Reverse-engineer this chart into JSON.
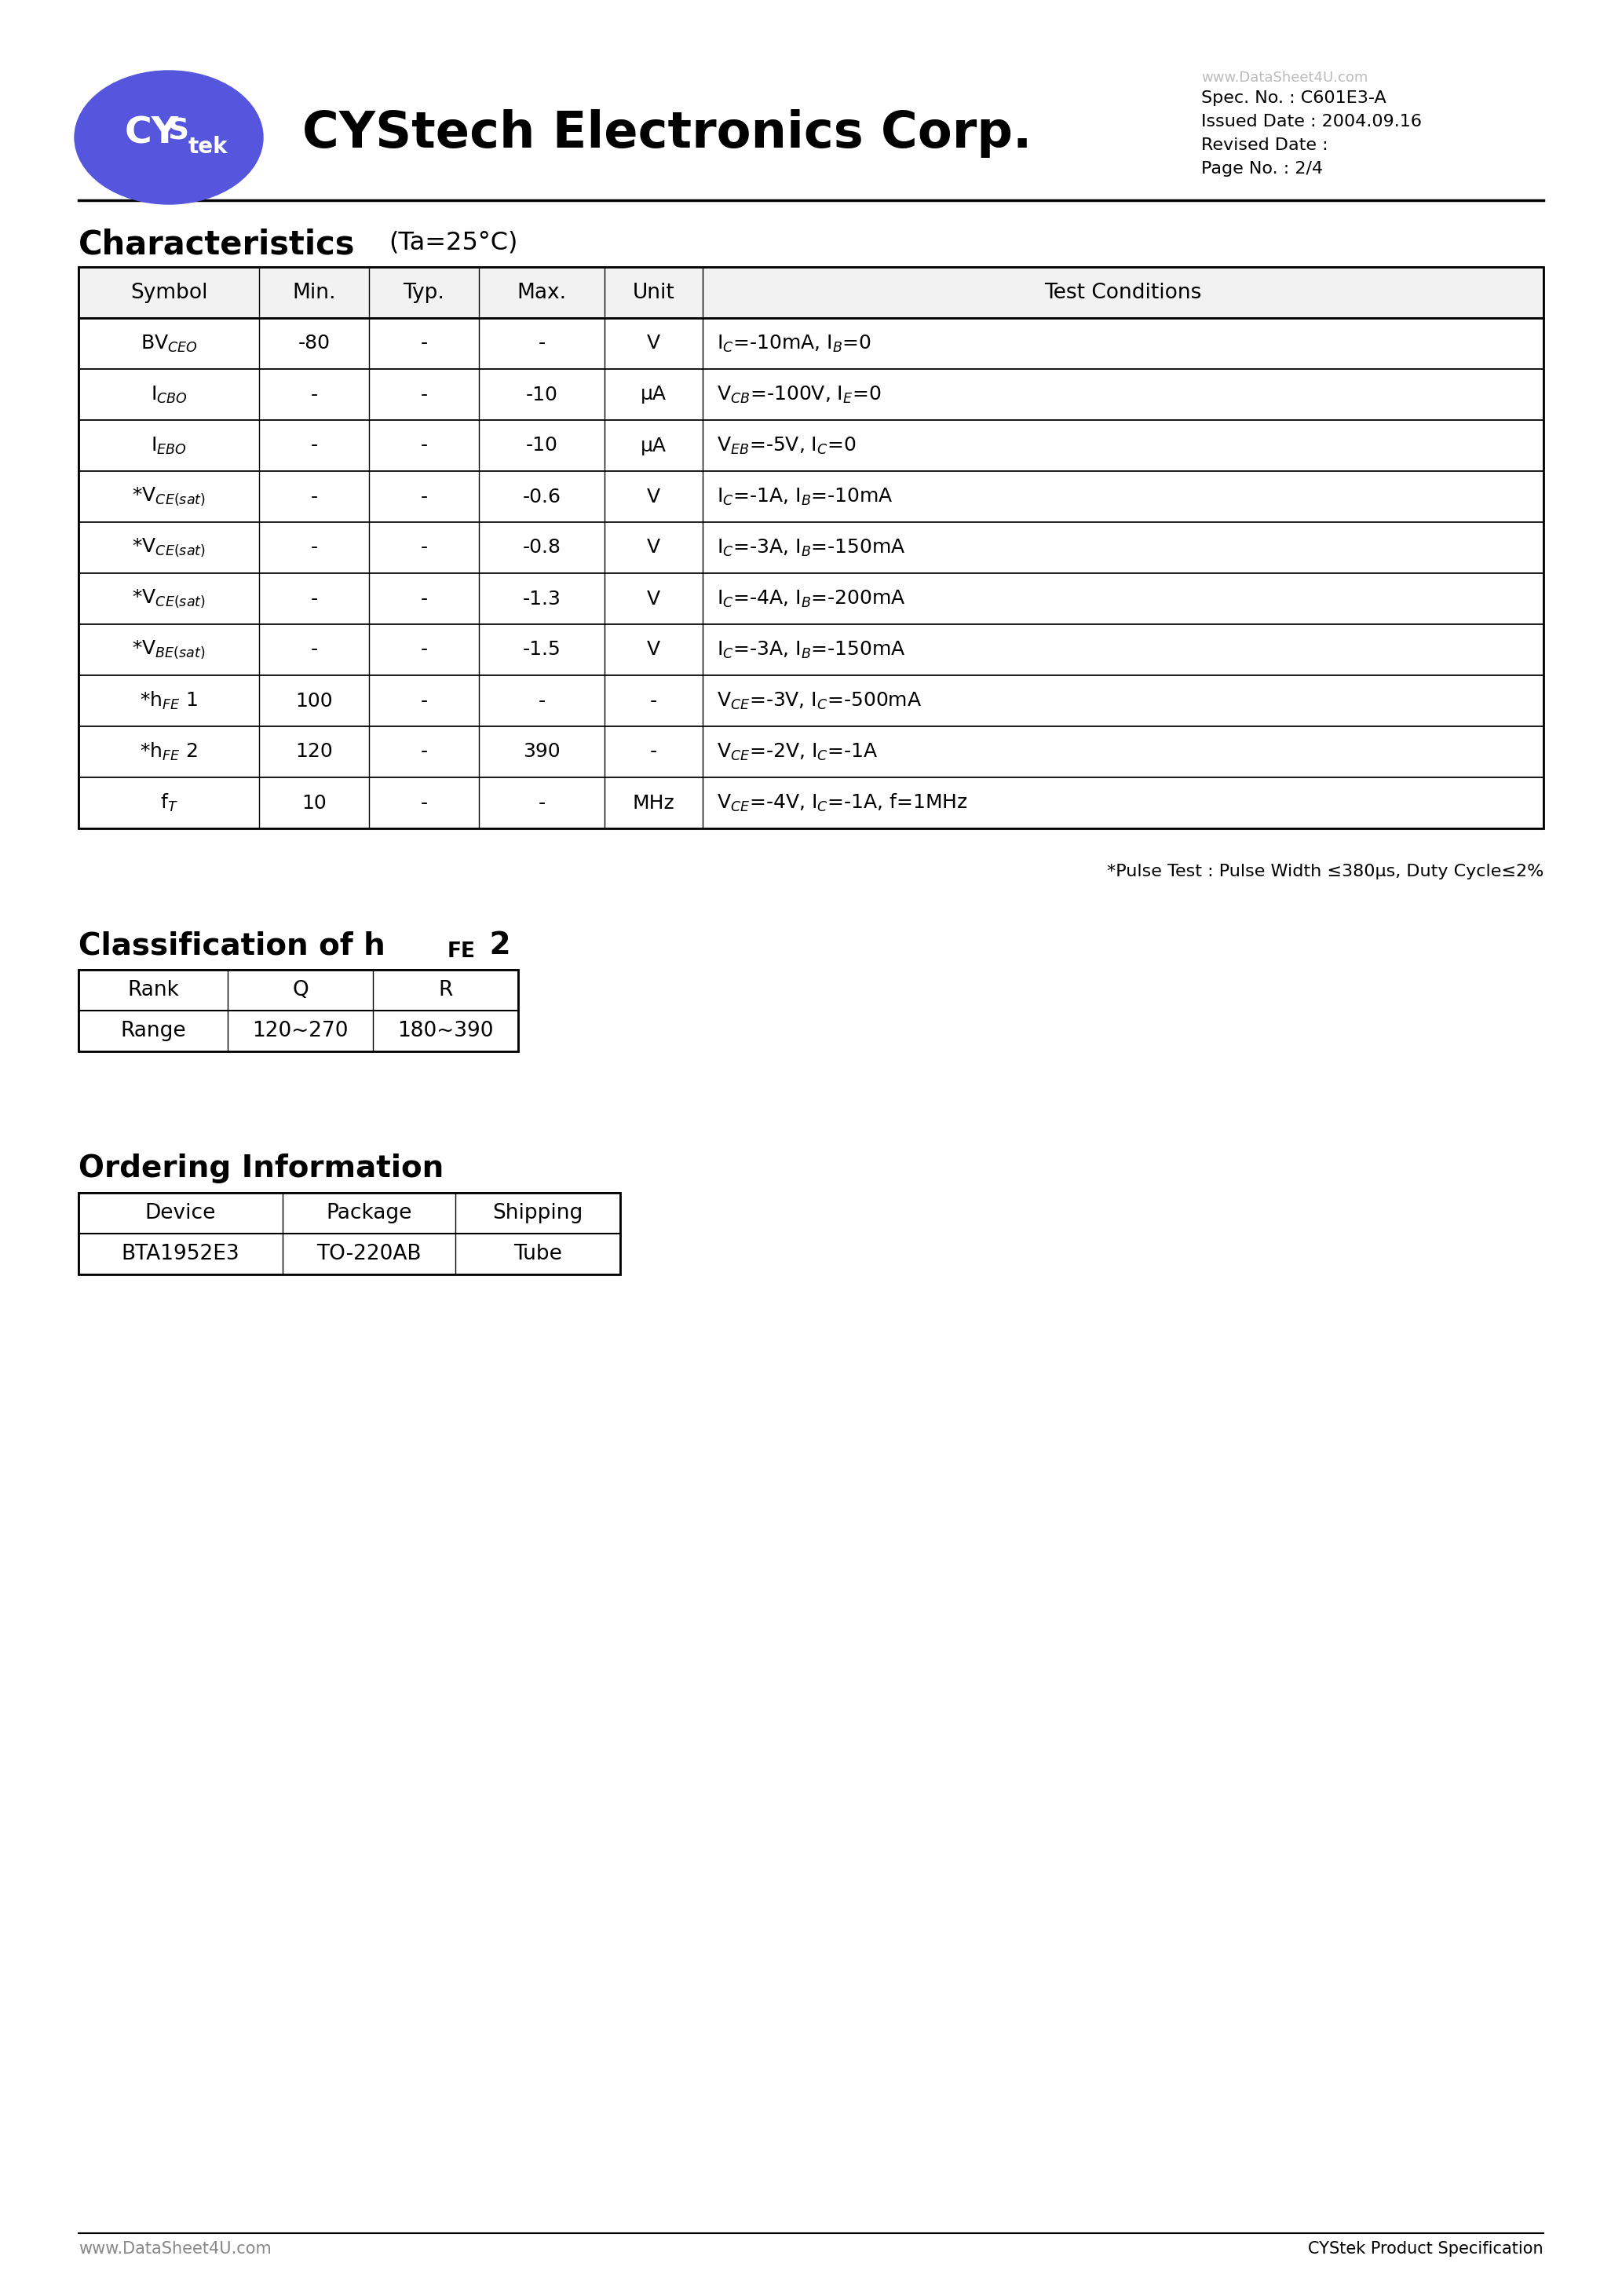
{
  "page_bg": "#ffffff",
  "company_name": "CYStech Electronics Corp.",
  "spec_no": "Spec. No. : C601E3-A",
  "issued_date": "Issued Date : 2004.09.16",
  "revised_date": "Revised Date :",
  "page_no": "Page No. : 2/4",
  "watermark": "www.DataSheet4U.com",
  "char_title": "Characteristics",
  "char_subtitle": "(Ta=25°C)",
  "char_table_headers": [
    "Symbol",
    "Min.",
    "Typ.",
    "Max.",
    "Unit",
    "Test Conditions"
  ],
  "char_table_rows": [
    [
      "BV$_{CEO}$",
      "-80",
      "-",
      "-",
      "V",
      "I$_C$=-10mA, I$_B$=0"
    ],
    [
      "I$_{CBO}$",
      "-",
      "-",
      "-10",
      "μA",
      "V$_{CB}$=-100V, I$_E$=0"
    ],
    [
      "I$_{EBO}$",
      "-",
      "-",
      "-10",
      "μA",
      "V$_{EB}$=-5V, I$_C$=0"
    ],
    [
      "*V$_{CE(sat)}$",
      "-",
      "-",
      "-0.6",
      "V",
      "I$_C$=-1A, I$_B$=-10mA"
    ],
    [
      "*V$_{CE(sat)}$",
      "-",
      "-",
      "-0.8",
      "V",
      "I$_C$=-3A, I$_B$=-150mA"
    ],
    [
      "*V$_{CE(sat)}$",
      "-",
      "-",
      "-1.3",
      "V",
      "I$_C$=-4A, I$_B$=-200mA"
    ],
    [
      "*V$_{BE(sat)}$",
      "-",
      "-",
      "-1.5",
      "V",
      "I$_C$=-3A, I$_B$=-150mA"
    ],
    [
      "*h$_{FE}$ 1",
      "100",
      "-",
      "-",
      "-",
      "V$_{CE}$=-3V, I$_C$=-500mA"
    ],
    [
      "*h$_{FE}$ 2",
      "120",
      "-",
      "390",
      "-",
      "V$_{CE}$=-2V, I$_C$=-1A"
    ],
    [
      "f$_T$",
      "10",
      "-",
      "-",
      "MHz",
      "V$_{CE}$=-4V, I$_C$=-1A, f=1MHz"
    ]
  ],
  "pulse_note": "*Pulse Test : Pulse Width ≤380μs, Duty Cycle≤2%",
  "class_table_headers": [
    "Rank",
    "Q",
    "R"
  ],
  "class_table_rows": [
    [
      "Range",
      "120~270",
      "180~390"
    ]
  ],
  "order_title": "Ordering Information",
  "order_table_headers": [
    "Device",
    "Package",
    "Shipping"
  ],
  "order_table_rows": [
    [
      "BTA1952E3",
      "TO-220AB",
      "Tube"
    ]
  ],
  "footer_left": "www.DataSheet4U.com",
  "footer_right": "CYStek Product Specification",
  "logo_color": "#5555dd"
}
